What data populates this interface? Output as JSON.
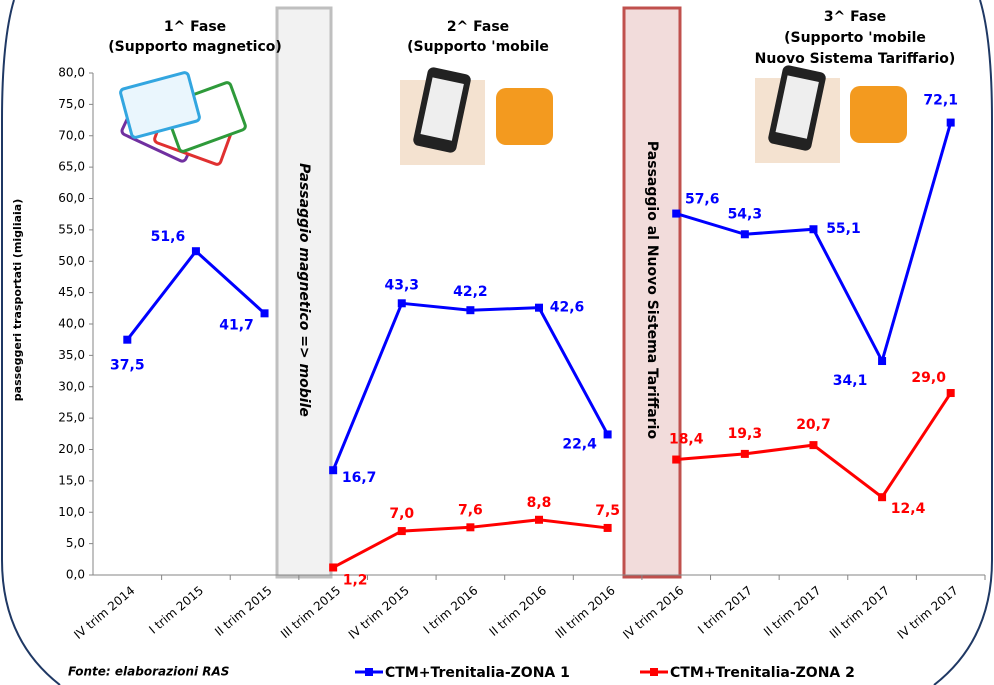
{
  "chart_data": {
    "type": "line",
    "y_label": "passeggeri trasportati (migliaia)",
    "source": "Fonte: elaborazioni RAS",
    "phase_titles": [
      [
        "1^ Fase",
        "(Supporto magnetico)"
      ],
      [
        "2^ Fase",
        "(Supporto 'mobile"
      ],
      [
        "3^ Fase",
        "(Supporto 'mobile",
        "Nuovo Sistema Tariffario)"
      ]
    ],
    "transitions": [
      "Passaggio magnetico => mobile",
      "Passaggio al Nuovo Sistema Tariffario"
    ],
    "categories": [
      [
        "IV trim 2014",
        "I trim 2015",
        "II trim 2015"
      ],
      [
        "III trim 2015",
        "IV trim 2015",
        "I trim 2016",
        "II trim 2016",
        "III trim 2016"
      ],
      [
        "IV trim 2016",
        "I trim 2017",
        "II trim 2017",
        "III trim 2017",
        "IV trim 2017"
      ]
    ],
    "series": [
      {
        "name": "CTM+Trenitalia-ZONA 1",
        "color": "#0000ff",
        "values": [
          [
            37.5,
            51.6,
            41.7
          ],
          [
            16.7,
            43.3,
            42.2,
            42.6,
            22.4
          ],
          [
            57.6,
            54.3,
            55.1,
            34.1,
            72.1
          ]
        ],
        "value_labels": [
          [
            "37,5",
            "51,6",
            "41,7"
          ],
          [
            "16,7",
            "43,3",
            "42,2",
            "42,6",
            "22,4"
          ],
          [
            "57,6",
            "54,3",
            "55,1",
            "34,1",
            "72,1"
          ]
        ]
      },
      {
        "name": "CTM+Trenitalia-ZONA 2",
        "color": "#ff0000",
        "values": [
          [
            null,
            null,
            null
          ],
          [
            1.2,
            7.0,
            7.6,
            8.8,
            7.5
          ],
          [
            18.4,
            19.3,
            20.7,
            12.4,
            29.0
          ]
        ],
        "value_labels": [
          [
            null,
            null,
            null
          ],
          [
            "1,2",
            "7,0",
            "7,6",
            "8,8",
            "7,5"
          ],
          [
            "18,4",
            "19,3",
            "20,7",
            "12,4",
            "29,0"
          ]
        ]
      }
    ],
    "ylim": [
      0,
      80
    ],
    "yticks": [
      {
        "value": 0,
        "label": "0,0"
      },
      {
        "value": 5,
        "label": "5,0"
      },
      {
        "value": 10,
        "label": "10,0"
      },
      {
        "value": 15,
        "label": "15,0"
      },
      {
        "value": 20,
        "label": "20,0"
      },
      {
        "value": 25,
        "label": "25,0"
      },
      {
        "value": 30,
        "label": "30,0"
      },
      {
        "value": 35,
        "label": "35,0"
      },
      {
        "value": 40,
        "label": "40,0"
      },
      {
        "value": 45,
        "label": "45,0"
      },
      {
        "value": 50,
        "label": "50,0"
      },
      {
        "value": 55,
        "label": "55,0"
      },
      {
        "value": 60,
        "label": "60,0"
      },
      {
        "value": 65,
        "label": "65,0"
      },
      {
        "value": 70,
        "label": "70,0"
      },
      {
        "value": 75,
        "label": "75,0"
      },
      {
        "value": 80,
        "label": "80,0"
      }
    ],
    "grid": false,
    "legend": "bottom"
  }
}
